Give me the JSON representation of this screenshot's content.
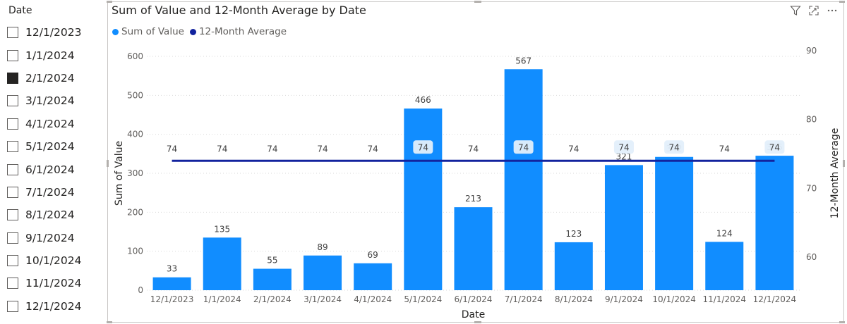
{
  "slicer": {
    "title": "Date",
    "items": [
      {
        "label": "12/1/2023",
        "checked": false
      },
      {
        "label": "1/1/2024",
        "checked": false
      },
      {
        "label": "2/1/2024",
        "checked": true
      },
      {
        "label": "3/1/2024",
        "checked": false
      },
      {
        "label": "4/1/2024",
        "checked": false
      },
      {
        "label": "5/1/2024",
        "checked": false
      },
      {
        "label": "6/1/2024",
        "checked": false
      },
      {
        "label": "7/1/2024",
        "checked": false
      },
      {
        "label": "8/1/2024",
        "checked": false
      },
      {
        "label": "9/1/2024",
        "checked": false
      },
      {
        "label": "10/1/2024",
        "checked": false
      },
      {
        "label": "11/1/2024",
        "checked": false
      },
      {
        "label": "12/1/2024",
        "checked": false
      }
    ]
  },
  "header_icons": [
    "filter-icon",
    "focus-mode-icon",
    "more-options-icon"
  ],
  "chart_data": {
    "type": "bar",
    "title": "Sum of Value and 12-Month Average by Date",
    "xlabel": "Date",
    "ylabel": "Sum of Value",
    "y2label": "12-Month Average",
    "categories": [
      "12/1/2023",
      "1/1/2024",
      "2/1/2024",
      "3/1/2024",
      "4/1/2024",
      "5/1/2024",
      "6/1/2024",
      "7/1/2024",
      "8/1/2024",
      "9/1/2024",
      "10/1/2024",
      "11/1/2024",
      "12/1/2024"
    ],
    "series": [
      {
        "name": "Sum of Value",
        "type": "bar",
        "axis": "left",
        "color": "#118DFF",
        "values": [
          33,
          135,
          55,
          89,
          69,
          466,
          213,
          567,
          123,
          321,
          342,
          124,
          345
        ]
      },
      {
        "name": "12-Month Average",
        "type": "line",
        "axis": "right",
        "color": "#12239E",
        "values": [
          74,
          74,
          74,
          74,
          74,
          74,
          74,
          74,
          74,
          74,
          74,
          74,
          74
        ]
      }
    ],
    "ylim": [
      0,
      600
    ],
    "yticks": [
      0,
      100,
      200,
      300,
      400,
      500,
      600
    ],
    "y2lim": [
      55,
      90
    ],
    "y2ticks": [
      60,
      70,
      80,
      90
    ],
    "grid": true,
    "legend_position": "top-left",
    "boxed_line_labels": [
      5,
      7,
      9,
      10,
      12
    ]
  }
}
